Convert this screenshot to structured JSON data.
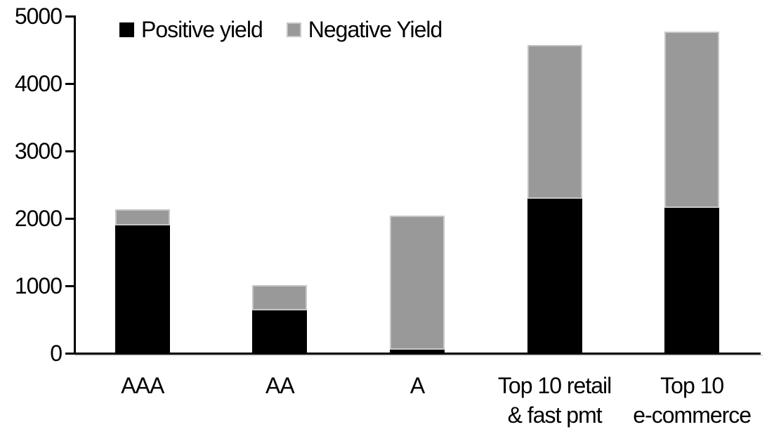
{
  "chart_data": {
    "type": "bar",
    "stacked": true,
    "title": "",
    "xlabel": "",
    "ylabel": "",
    "categories": [
      "AAA",
      "AA",
      "A",
      "Top 10 retail\n& fast pmt",
      "Top 10\ne-commerce"
    ],
    "series": [
      {
        "name": "Positive yield",
        "color": "#000000",
        "values": [
          1890,
          620,
          40,
          2280,
          2150
        ]
      },
      {
        "name": "Negative Yield",
        "color": "#999999",
        "values": [
          230,
          385,
          1990,
          2280,
          2610
        ]
      }
    ],
    "ylim": [
      0,
      5000
    ],
    "yticks": [
      0,
      1000,
      2000,
      3000,
      4000,
      5000
    ],
    "grid": false,
    "legend_position": "top-left",
    "colors": {
      "positive": "#000000",
      "negative": "#999999",
      "negative_border": "#c6c6c6",
      "axis": "#000000"
    }
  }
}
